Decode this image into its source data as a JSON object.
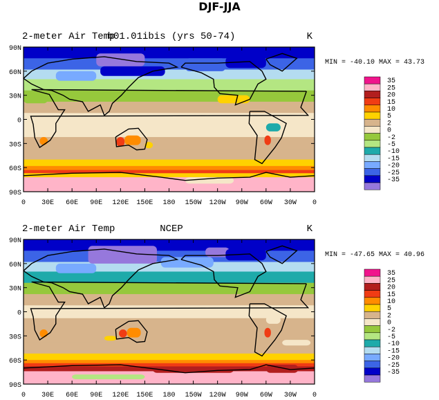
{
  "title": "DJF-JJA",
  "colors": {
    "35": "#f0148c",
    "25": "#ffb4c8",
    "20": "#b21e1e",
    "15": "#f03c14",
    "10": "#ff8c00",
    "5": "#ffd200",
    "2": "#d7b48c",
    "0": "#f5e6c8",
    "-2": "#96c83c",
    "-5": "#b4e682",
    "-10": "#1eaaaa",
    "-15": "#b4dcf0",
    "-20": "#78aaff",
    "-25": "#3c64e6",
    "-35": "#0000c8",
    "min": "#9678dc",
    "land_outline": "#000000"
  },
  "chart_data": [
    {
      "type": "heatmap",
      "left_label": "2-meter Air Temp",
      "center_label": "b01.01ibis (yrs 50-74)",
      "units": "K",
      "min": "-40.10",
      "max": "43.73",
      "x_ticks": [
        "0",
        "30E",
        "60E",
        "90E",
        "120E",
        "150E",
        "180",
        "150W",
        "120W",
        "90W",
        "60W",
        "30W",
        "0"
      ],
      "y_ticks": [
        "90N",
        "60N",
        "30N",
        "0",
        "30S",
        "60S",
        "90S"
      ],
      "colorbar_levels": [
        "35",
        "25",
        "20",
        "15",
        "10",
        "5",
        "2",
        "0",
        "-2",
        "-5",
        "-10",
        "-15",
        "-20",
        "-25",
        "-35"
      ]
    },
    {
      "type": "heatmap",
      "left_label": "2-meter Air Temp",
      "center_label": "NCEP",
      "units": "K",
      "min": "-47.65",
      "max": "40.96",
      "x_ticks": [
        "0",
        "30E",
        "60E",
        "90E",
        "120E",
        "150E",
        "180",
        "150W",
        "120W",
        "90W",
        "60W",
        "30W",
        "0"
      ],
      "y_ticks": [
        "90N",
        "60N",
        "30N",
        "0",
        "30S",
        "60S",
        "90S"
      ],
      "colorbar_levels": [
        "35",
        "25",
        "20",
        "15",
        "10",
        "5",
        "2",
        "0",
        "-2",
        "-5",
        "-10",
        "-15",
        "-20",
        "-25",
        "-35"
      ]
    }
  ]
}
